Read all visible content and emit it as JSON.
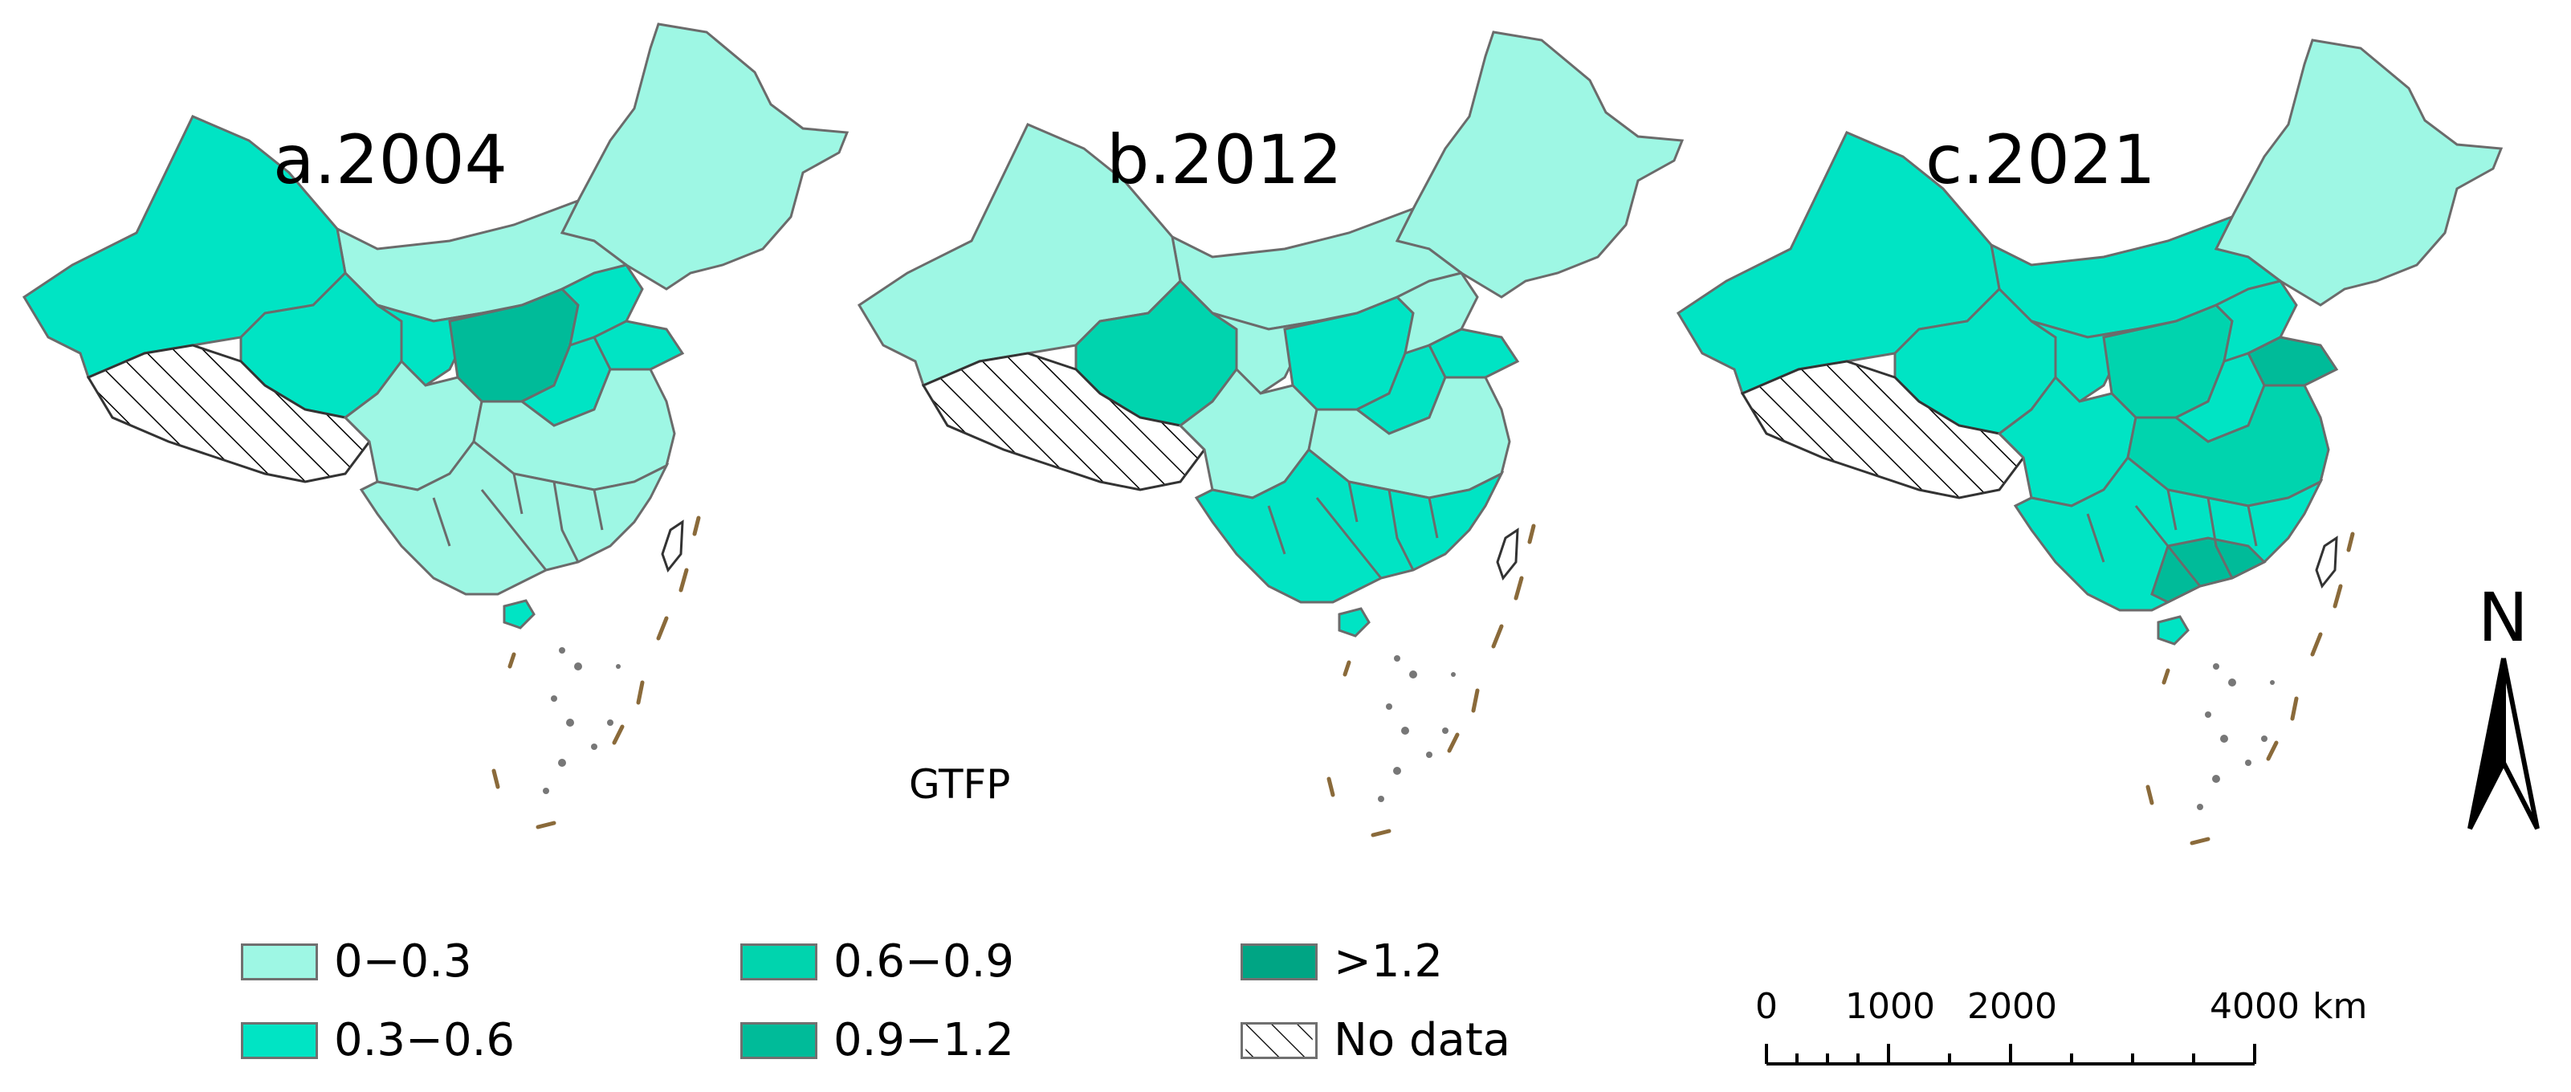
{
  "panels": [
    {
      "title": "a.2004",
      "year": 2004
    },
    {
      "title": "b.2012",
      "year": 2012
    },
    {
      "title": "c.2021",
      "year": 2021
    }
  ],
  "legend_title": "GTFP",
  "legend": [
    {
      "label": "0−0.3",
      "color": "#9ef7e4"
    },
    {
      "label": "0.3−0.6",
      "color": "#00e4c4"
    },
    {
      "label": "0.6−0.9",
      "color": "#00d4ae"
    },
    {
      "label": "0.9−1.2",
      "color": "#00bb99"
    },
    {
      "label": ">1.2",
      "color": "#00a584"
    },
    {
      "label": "No data",
      "color": "hatch"
    }
  ],
  "north_arrow": "N",
  "scale_bar": {
    "labels": [
      "0",
      "1000",
      "2000",
      "4000"
    ],
    "unit": "km"
  },
  "colors": {
    "border": "#6b6b6b",
    "dash_line": "#8a6a3a"
  }
}
